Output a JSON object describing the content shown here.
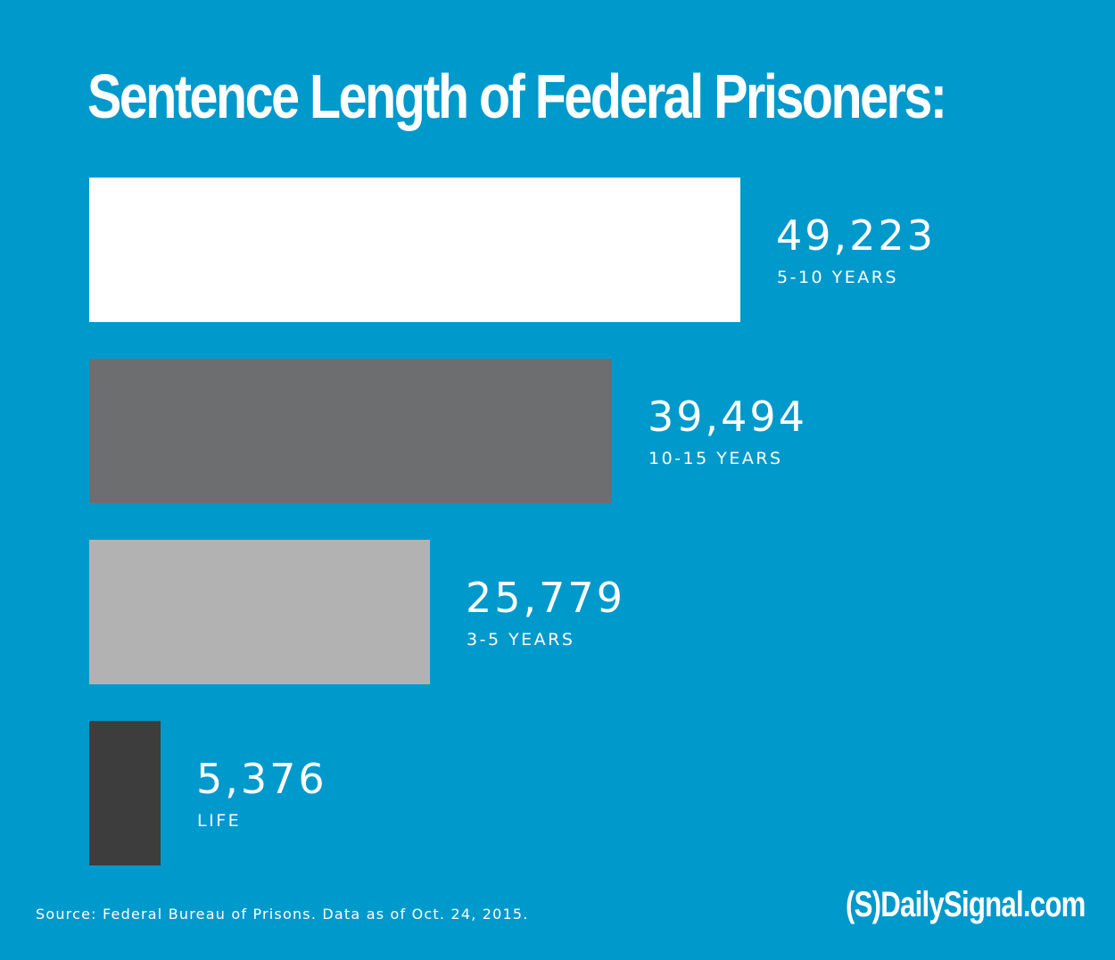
{
  "chart_data": {
    "type": "bar",
    "orientation": "horizontal",
    "title": "Sentence Length of Federal Prisoners:",
    "categories": [
      "5-10 YEARS",
      "10-15 YEARS",
      "3-5 YEARS",
      "LIFE"
    ],
    "values": [
      49223,
      39494,
      25779,
      5376
    ],
    "value_labels": [
      "49,223",
      "39,494",
      "25,779",
      "5,376"
    ],
    "colors": [
      "#ffffff",
      "#6d6e70",
      "#b2b2b2",
      "#3d3d3d"
    ],
    "xlabel": "",
    "ylabel": "",
    "grid": false
  },
  "source": "Source: Federal Bureau of Prisons. Data as of Oct. 24, 2015.",
  "logo": "(S)DailySignal.com",
  "background": "#0099cc"
}
